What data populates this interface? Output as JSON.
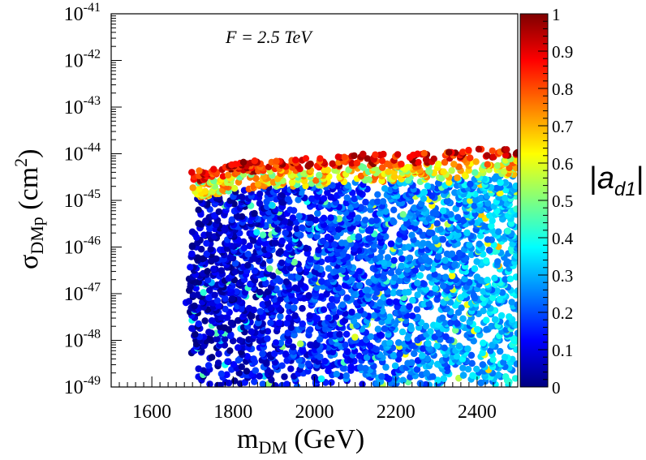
{
  "chart_data": {
    "type": "scatter",
    "title": "F = 2.5 TeV",
    "xlabel": "m",
    "xlabel_sub": "DM",
    "xlabel_unit": " (GeV)",
    "ylabel": "σ",
    "ylabel_sub": "DMp",
    "ylabel_unit_open": " (cm",
    "ylabel_unit_sup": "2",
    "ylabel_unit_close": ")",
    "xlim": [
      1500,
      2500
    ],
    "ylim_log10": [
      -49,
      -41
    ],
    "x_ticks": [
      1600,
      1800,
      2000,
      2200,
      2400
    ],
    "y_tick_exponents": [
      -41,
      -42,
      -43,
      -44,
      -45,
      -46,
      -47,
      -48,
      -49
    ],
    "colorbar": {
      "label_pre": "|",
      "label_main": "a",
      "label_sub": "d1",
      "label_post": "|",
      "range": [
        0,
        1
      ],
      "ticks": [
        "0",
        "0.1",
        "0.2",
        "0.3",
        "0.4",
        "0.5",
        "0.6",
        "0.7",
        "0.8",
        "0.9",
        "1"
      ],
      "colormap": [
        "#00007f",
        "#0000ff",
        "#007fff",
        "#00ffff",
        "#7fff7f",
        "#ffff00",
        "#ff7f00",
        "#ff0000",
        "#7f0000"
      ]
    },
    "series": [
      {
        "name": "scan points",
        "description_x_range": [
          1680,
          2500
        ],
        "description_log10_sigma_range": [
          -49,
          -43.8
        ],
        "upper_envelope_log10_sigma": {
          "x": [
            1690,
            1750,
            1800,
            1900,
            2000,
            2100,
            2200,
            2300,
            2400,
            2500
          ],
          "y": [
            -44.4,
            -44.3,
            -44.2,
            -44.1,
            -44.1,
            -44.0,
            -44.0,
            -43.95,
            -43.9,
            -43.85
          ]
        },
        "lower_x_edge": {
          "log10_sigma": [
            -44.4,
            -45.0,
            -46.0,
            -47.0,
            -48.0,
            -49.0
          ],
          "x": [
            1690,
            1700,
            1690,
            1680,
            1690,
            1700
          ]
        }
      }
    ]
  }
}
